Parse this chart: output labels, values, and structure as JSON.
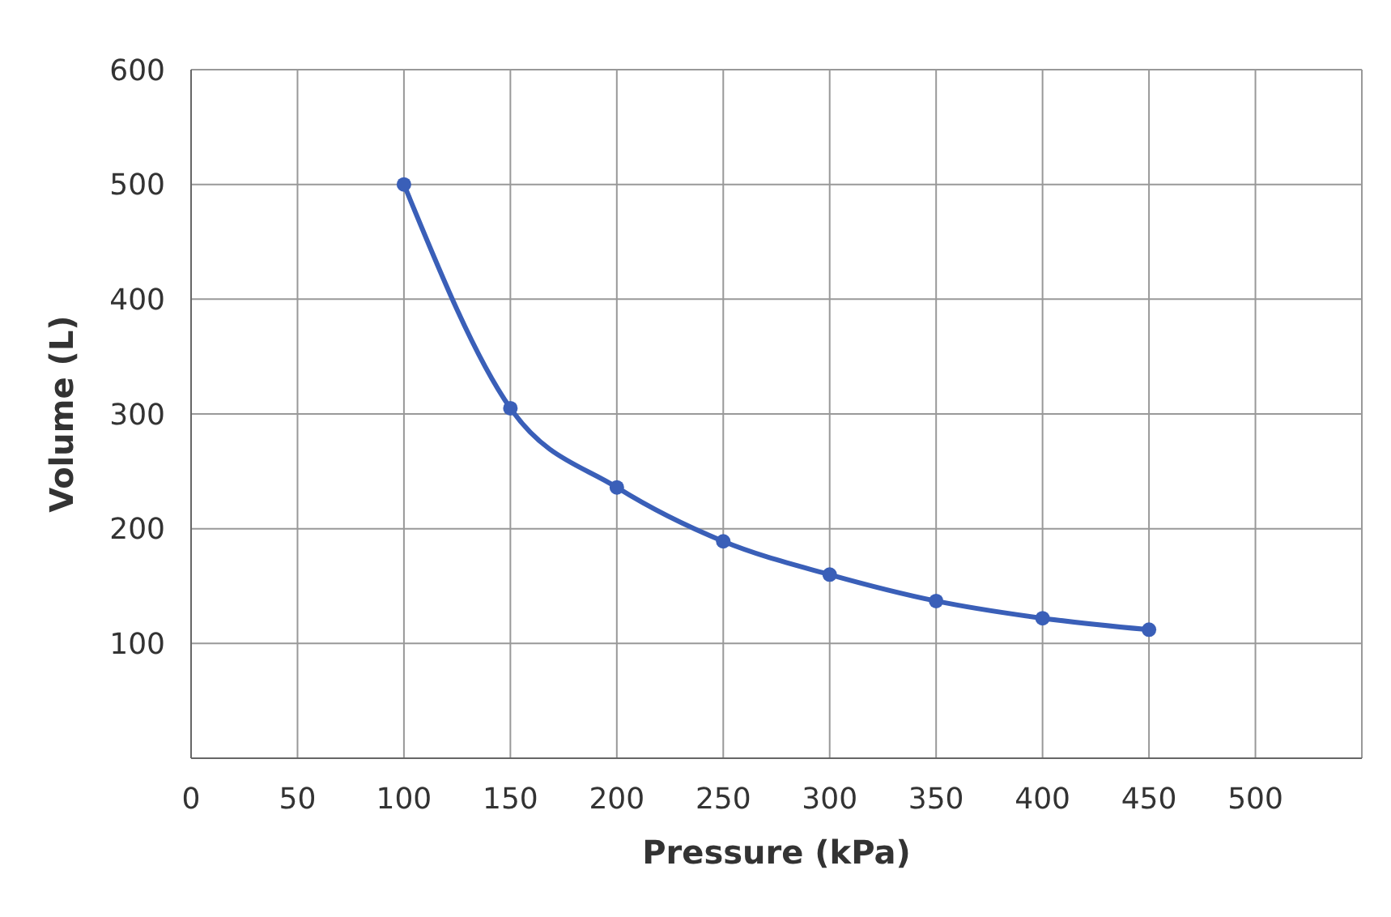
{
  "chart_data": {
    "type": "line",
    "xlabel": "Pressure (kPa)",
    "ylabel": "Volume (L)",
    "x": [
      100,
      150,
      200,
      250,
      300,
      350,
      400,
      450
    ],
    "series": [
      {
        "color": "#3a5fb8",
        "values": [
          500,
          305,
          236,
          189,
          160,
          137,
          122,
          112
        ]
      }
    ],
    "xlim": [
      0,
      550
    ],
    "xticks": [
      0,
      50,
      100,
      150,
      200,
      250,
      300,
      350,
      400,
      450,
      500
    ],
    "ylim": [
      0,
      600
    ],
    "yticks": [
      100,
      200,
      300,
      400,
      500,
      600
    ],
    "grid": true,
    "marker": "circle",
    "line_style": "solid",
    "legend": false
  }
}
